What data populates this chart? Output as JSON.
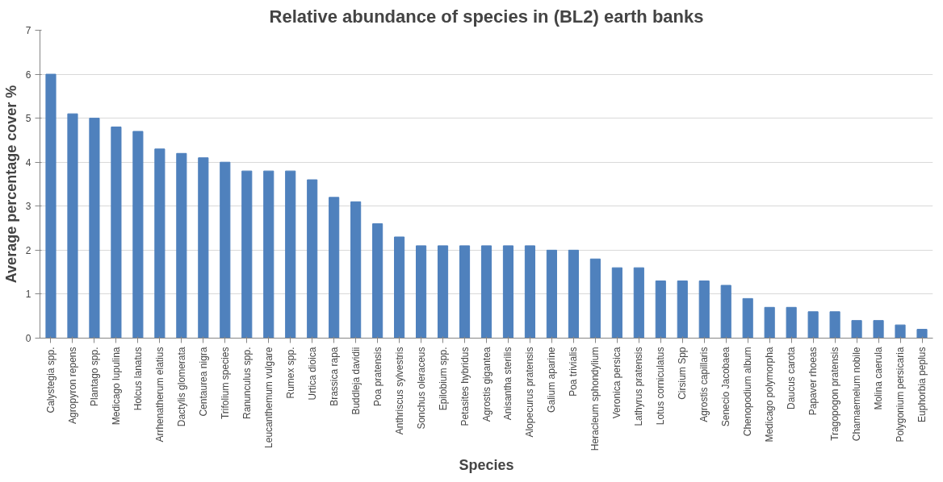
{
  "chart_data": {
    "type": "bar",
    "title": "Relative abundance of species in (BL2) earth banks",
    "xlabel": "Species",
    "ylabel": "Average percentage cover %",
    "categories": [
      "Calystegia spp.",
      "Agropyron repens",
      "Plantago spp.",
      "Medicago lupulina",
      "Holcus lanatus",
      "Arrhenatherum elatius",
      "Dactylis glomerata",
      "Centaurea nigra",
      "Trifolium species",
      "Ranunculus spp.",
      "Leucanthemum vulgare",
      "Rumex spp.",
      "Urtica dioica",
      "Brassica rapa",
      "Buddleja davidii",
      "Poa pratensis",
      "Anthriscus sylvestris",
      "Sonchus oleraceus",
      "Epilobium spp.",
      "Petasites hybridus",
      "Agrostis gigantea",
      "Anisantha sterilis",
      "Alopecurus pratensis",
      "Galium aparine",
      "Poa trivialis",
      "Heracleum sphondylium",
      "Veronica persica",
      "Lathyrus pratensis",
      "Lotus corniculatus",
      "Cirsium Spp",
      "Agrostis capillaris",
      "Senecio Jacobaea",
      "Chenopodium album",
      "Medicago polymorpha",
      "Daucus carota",
      "Papaver rhoeas",
      "Tragopogon pratensis",
      "Chamaemelum nobile",
      "Molina caerula",
      "Polygonium persicaria",
      "Euphorbia peplus"
    ],
    "values": [
      6.0,
      5.1,
      5.0,
      4.8,
      4.7,
      4.3,
      4.2,
      4.1,
      4.0,
      3.8,
      3.8,
      3.8,
      3.6,
      3.2,
      3.1,
      2.6,
      2.3,
      2.1,
      2.1,
      2.1,
      2.1,
      2.1,
      2.1,
      2.0,
      2.0,
      1.8,
      1.6,
      1.6,
      1.3,
      1.3,
      1.3,
      1.2,
      0.9,
      0.7,
      0.7,
      0.6,
      0.6,
      0.4,
      0.4,
      0.3,
      0.2
    ],
    "color": "#4f81bd",
    "ylim": [
      0,
      7
    ],
    "yticks": [
      0,
      1,
      2,
      3,
      4,
      5,
      6,
      7
    ],
    "grid": "y"
  }
}
